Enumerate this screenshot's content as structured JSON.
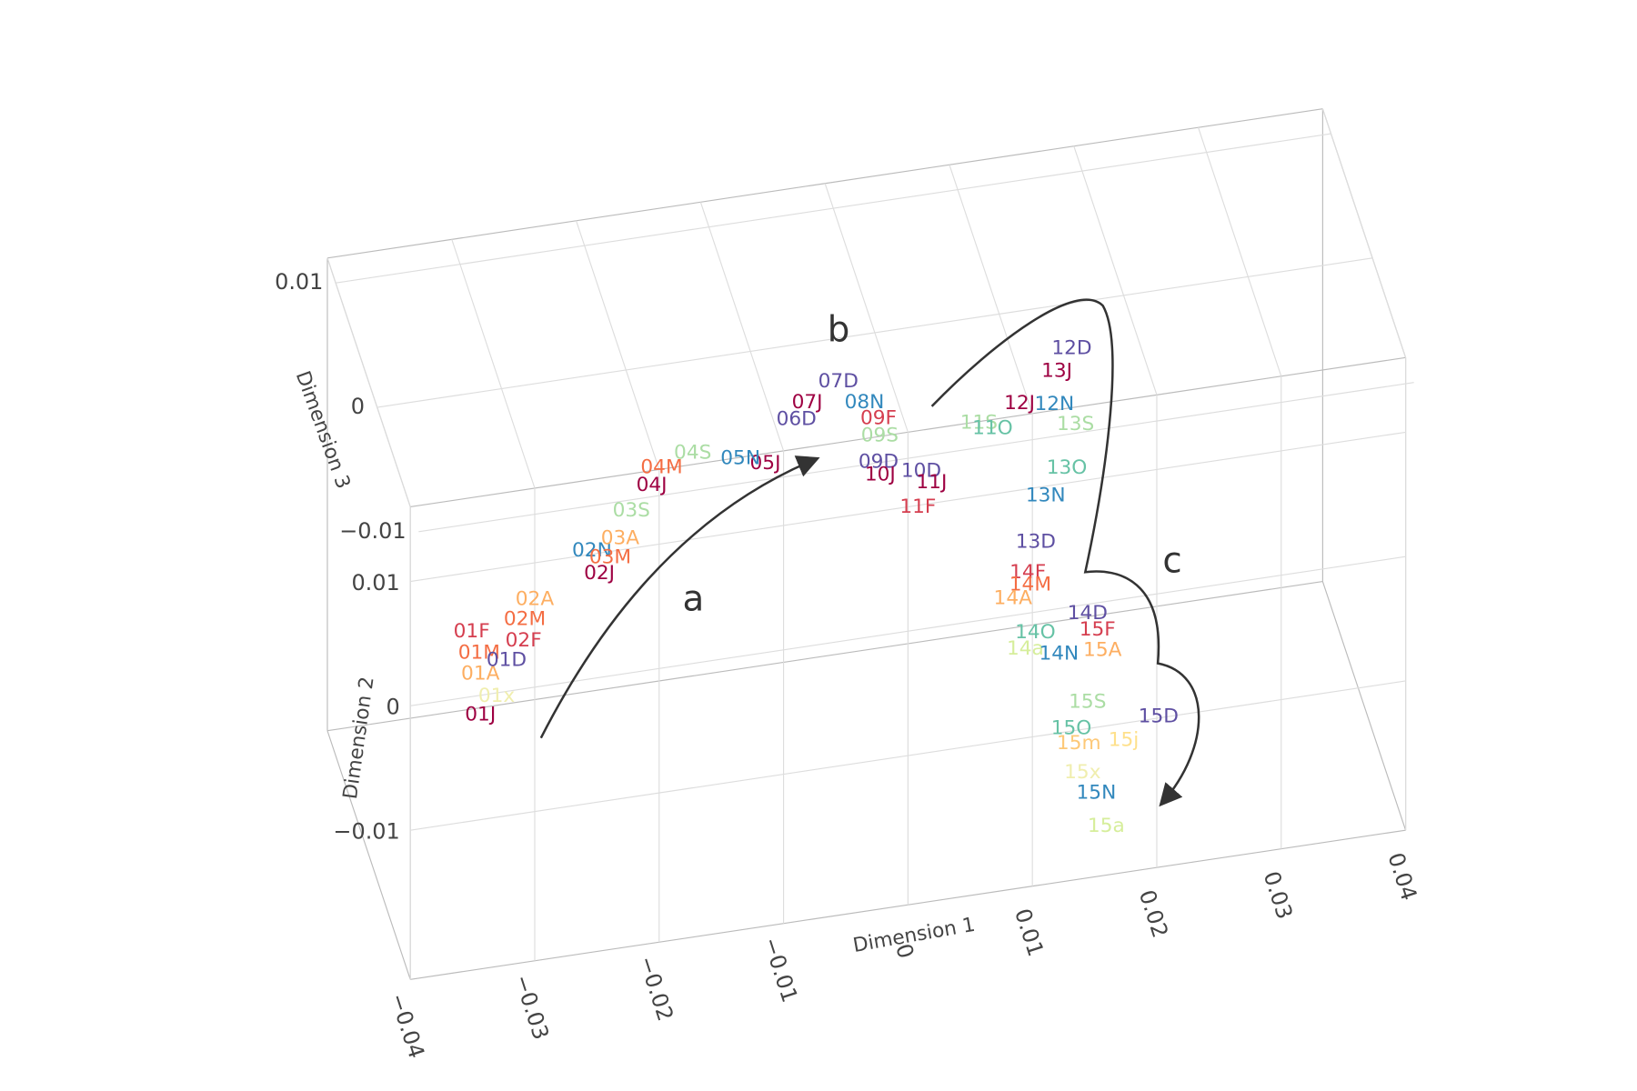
{
  "chart_data": {
    "type": "scatter3d",
    "xlabel": "Dimension 1",
    "ylabel": "Dimension 2",
    "zlabel": "Dimension 3",
    "xlim": [
      -0.04,
      0.04
    ],
    "ylim": [
      -0.022,
      0.016
    ],
    "zlim": [
      -0.008,
      0.012
    ],
    "xticks": [
      {
        "value": -0.04,
        "label": "−0.04"
      },
      {
        "value": -0.03,
        "label": "−0.03"
      },
      {
        "value": -0.02,
        "label": "−0.02"
      },
      {
        "value": -0.01,
        "label": "−0.01"
      },
      0,
      0.01,
      0.02,
      0.03,
      0.04
    ],
    "yticks": [
      {
        "value": -0.01,
        "label": "−0.01"
      },
      0,
      0.01
    ],
    "zticks": [
      {
        "value": -0.01,
        "label": "−0.01"
      },
      0,
      0.01
    ],
    "grid": true,
    "annotations": [
      "a",
      "b",
      "c"
    ],
    "points": [
      {
        "label": "01J",
        "color": "#9e0142",
        "x": -0.0337,
        "y": -0.0037,
        "z": -0.006
      },
      {
        "label": "01F",
        "color": "#d53e4f",
        "x": -0.0344,
        "y": 0.0031,
        "z": -0.006
      },
      {
        "label": "01M",
        "color": "#f46d43",
        "x": -0.0338,
        "y": 0.0013,
        "z": -0.006
      },
      {
        "label": "01A",
        "color": "#fdae61",
        "x": -0.0337,
        "y": -0.0004,
        "z": -0.006
      },
      {
        "label": "01D",
        "color": "#5e4fa2",
        "x": -0.0316,
        "y": 0.0004,
        "z": -0.006
      },
      {
        "label": "01x",
        "color": "#f0eeae",
        "x": -0.0324,
        "y": -0.0024,
        "z": -0.006
      },
      {
        "label": "02F",
        "color": "#d53e4f",
        "x": -0.0299,
        "y": 0.0007,
        "z": -0.005
      },
      {
        "label": "02M",
        "color": "#f46d43",
        "x": -0.0298,
        "y": 0.0024,
        "z": -0.005
      },
      {
        "label": "02A",
        "color": "#fdae61",
        "x": -0.029,
        "y": 0.0039,
        "z": -0.005
      },
      {
        "label": "02J",
        "color": "#9e0142",
        "x": -0.0238,
        "y": 0.0052,
        "z": -0.005
      },
      {
        "label": "02N",
        "color": "#3288bd",
        "x": -0.0244,
        "y": 0.0071,
        "z": -0.005
      },
      {
        "label": "03M",
        "color": "#f46d43",
        "x": -0.0226,
        "y": 0.0053,
        "z": -0.004
      },
      {
        "label": "03A",
        "color": "#fdae61",
        "x": -0.0218,
        "y": 0.0067,
        "z": -0.004
      },
      {
        "label": "03S",
        "color": "#abdda4",
        "x": -0.0209,
        "y": 0.0088,
        "z": -0.004
      },
      {
        "label": "04J",
        "color": "#9e0142",
        "x": -0.0186,
        "y": 0.0085,
        "z": -0.002
      },
      {
        "label": "04M",
        "color": "#f46d43",
        "x": -0.0178,
        "y": 0.0098,
        "z": -0.002
      },
      {
        "label": "04S",
        "color": "#abdda4",
        "x": -0.0153,
        "y": 0.0106,
        "z": -0.002
      },
      {
        "label": "05J",
        "color": "#9e0142",
        "x": -0.0088,
        "y": 0.0068,
        "z": 0
      },
      {
        "label": "05N",
        "color": "#3288bd",
        "x": -0.0108,
        "y": 0.0075,
        "z": 0
      },
      {
        "label": "06D",
        "color": "#5e4fa2",
        "x": -0.0053,
        "y": 0.0068,
        "z": 0.003
      },
      {
        "label": "07J",
        "color": "#9e0142",
        "x": -0.0041,
        "y": 0.007,
        "z": 0.004
      },
      {
        "label": "07D",
        "color": "#5e4fa2",
        "x": -0.0016,
        "y": 0.0083,
        "z": 0.004
      },
      {
        "label": "08N",
        "color": "#3288bd",
        "x": 0.0005,
        "y": 0.0063,
        "z": 0.004
      },
      {
        "label": "09F",
        "color": "#d53e4f",
        "x": 0.0013,
        "y": 0.0059,
        "z": 0.003
      },
      {
        "label": "09S",
        "color": "#abdda4",
        "x": 0.0014,
        "y": 0.0045,
        "z": 0.003
      },
      {
        "label": "09D",
        "color": "#5e4fa2",
        "x": 0.0013,
        "y": 0.0024,
        "z": 0.003
      },
      {
        "label": "10J",
        "color": "#9e0142",
        "x": 0.0011,
        "y": 0.0024,
        "z": 0.002
      },
      {
        "label": "10D",
        "color": "#5e4fa2",
        "x": 0.0044,
        "y": 0.0022,
        "z": 0.002
      },
      {
        "label": "11J",
        "color": "#9e0142",
        "x": 0.0049,
        "y": 0.0022,
        "z": 0.001
      },
      {
        "label": "11F",
        "color": "#d53e4f",
        "x": 0.0038,
        "y": 0.0004,
        "z": 0.001
      },
      {
        "label": "11S",
        "color": "#abdda4",
        "x": 0.0087,
        "y": 0.0064,
        "z": 0.001
      },
      {
        "label": "11O",
        "color": "#66c2a5",
        "x": 0.0098,
        "y": 0.0058,
        "z": 0.001
      },
      {
        "label": "12J",
        "color": "#9e0142",
        "x": 0.0133,
        "y": 0.0033,
        "z": 0.005
      },
      {
        "label": "12N",
        "color": "#3288bd",
        "x": 0.0161,
        "y": 0.0028,
        "z": 0.005
      },
      {
        "label": "12D",
        "color": "#5e4fa2",
        "x": 0.0175,
        "y": 0.0071,
        "z": 0.005
      },
      {
        "label": "13J",
        "color": "#9e0142",
        "x": 0.0153,
        "y": 0.0086,
        "z": 0.002
      },
      {
        "label": "13S",
        "color": "#abdda4",
        "x": 0.0168,
        "y": 0.0041,
        "z": 0.002
      },
      {
        "label": "13O",
        "color": "#66c2a5",
        "x": 0.0161,
        "y": 0.0007,
        "z": 0.002
      },
      {
        "label": "13N",
        "color": "#3288bd",
        "x": 0.0144,
        "y": -0.0013,
        "z": 0.002
      },
      {
        "label": "13D",
        "color": "#5e4fa2",
        "x": 0.0136,
        "y": -0.0049,
        "z": 0.002
      },
      {
        "label": "14F",
        "color": "#d53e4f",
        "x": 0.0113,
        "y": -0.002,
        "z": -0.003
      },
      {
        "label": "14M",
        "color": "#f46d43",
        "x": 0.0115,
        "y": -0.003,
        "z": -0.003
      },
      {
        "label": "14A",
        "color": "#fdae61",
        "x": 0.0101,
        "y": -0.0039,
        "z": -0.003
      },
      {
        "label": "14D",
        "color": "#5e4fa2",
        "x": 0.0161,
        "y": -0.006,
        "z": -0.003
      },
      {
        "label": "14O",
        "color": "#66c2a5",
        "x": 0.0119,
        "y": -0.0069,
        "z": -0.003
      },
      {
        "label": "14a",
        "color": "#d6ee9b",
        "x": 0.0111,
        "y": -0.0081,
        "z": -0.003
      },
      {
        "label": "14N",
        "color": "#3288bd",
        "x": 0.0138,
        "y": -0.0089,
        "z": -0.003
      },
      {
        "label": "15F",
        "color": "#d53e4f",
        "x": 0.0159,
        "y": -0.0043,
        "z": -0.006
      },
      {
        "label": "15A",
        "color": "#fdae61",
        "x": 0.0163,
        "y": -0.006,
        "z": -0.006
      },
      {
        "label": "15S",
        "color": "#abdda4",
        "x": 0.0151,
        "y": -0.01,
        "z": -0.006
      },
      {
        "label": "15D",
        "color": "#5e4fa2",
        "x": 0.0208,
        "y": -0.012,
        "z": -0.006
      },
      {
        "label": "15O",
        "color": "#66c2a5",
        "x": 0.0138,
        "y": -0.0119,
        "z": -0.006
      },
      {
        "label": "15m",
        "color": "#fdc877",
        "x": 0.0144,
        "y": -0.0132,
        "z": -0.006
      },
      {
        "label": "15j",
        "color": "#fee08b",
        "x": 0.018,
        "y": -0.0135,
        "z": -0.006
      },
      {
        "label": "15x",
        "color": "#f0eeae",
        "x": 0.0147,
        "y": -0.0156,
        "z": -0.006
      },
      {
        "label": "15N",
        "color": "#3288bd",
        "x": 0.0158,
        "y": -0.0174,
        "z": -0.006
      },
      {
        "label": "15a",
        "color": "#d6ee9b",
        "x": 0.0166,
        "y": -0.0202,
        "z": -0.006
      }
    ]
  }
}
